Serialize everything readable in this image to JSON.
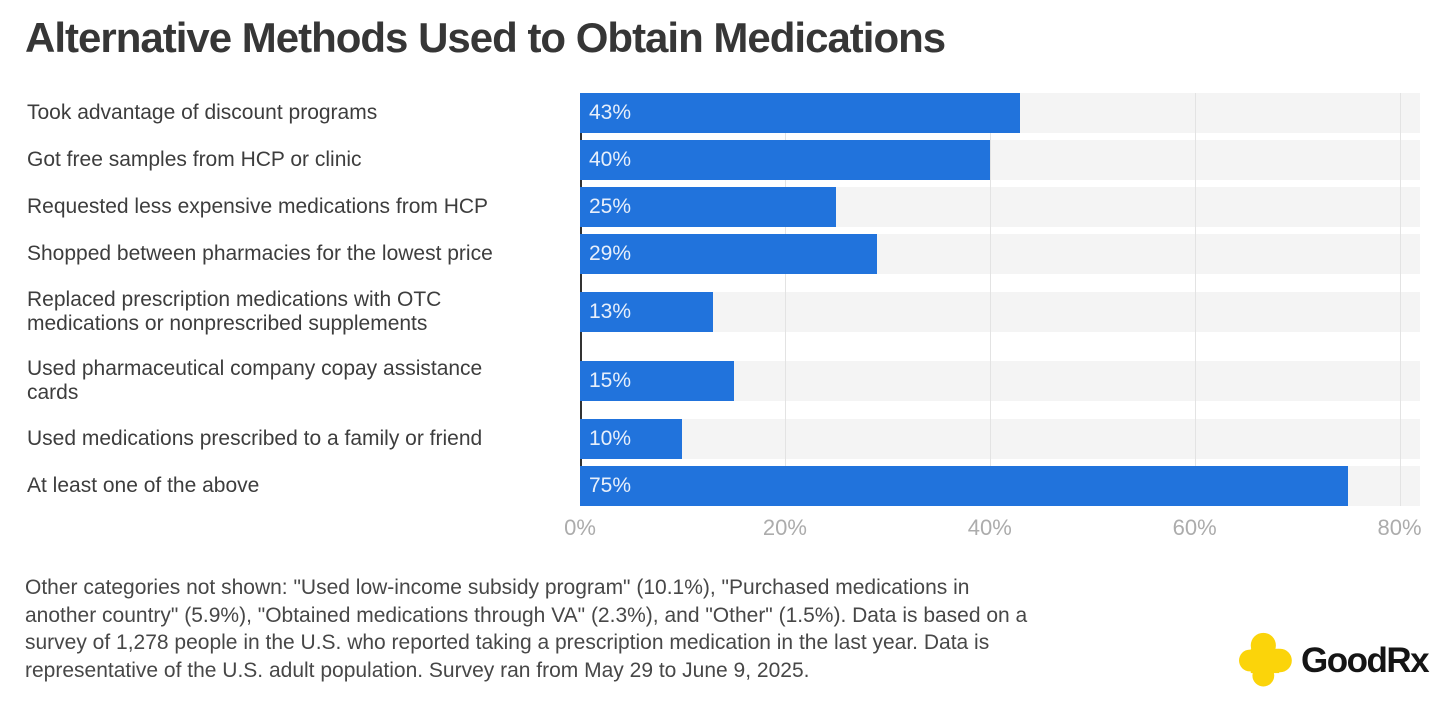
{
  "title": "Alternative Methods Used to Obtain Medications",
  "chart_data": {
    "type": "bar",
    "orientation": "horizontal",
    "title": "Alternative Methods Used to Obtain Medications",
    "categories": [
      "Took advantage of discount programs",
      "Got free samples from HCP or clinic",
      "Requested less expensive medications from HCP",
      "Shopped between pharmacies for the lowest price",
      "Replaced prescription medications with OTC medications or nonprescribed supplements",
      "Used pharmaceutical company copay assistance cards",
      "Used medications prescribed to a family or friend",
      "At least one of the above"
    ],
    "category_lines": [
      [
        "Took advantage of discount programs"
      ],
      [
        "Got free samples from HCP or clinic"
      ],
      [
        "Requested less expensive medications from HCP"
      ],
      [
        "Shopped between pharmacies for the lowest price"
      ],
      [
        "Replaced prescription medications with OTC",
        "medications or nonprescribed supplements"
      ],
      [
        "Used pharmaceutical company copay assistance",
        "cards"
      ],
      [
        "Used medications prescribed to a family or friend"
      ],
      [
        "At least one of the above"
      ]
    ],
    "values": [
      43,
      40,
      25,
      29,
      13,
      15,
      10,
      75
    ],
    "value_labels": [
      "43%",
      "40%",
      "25%",
      "29%",
      "13%",
      "15%",
      "10%",
      "75%"
    ],
    "xlabel": "",
    "ylabel": "",
    "x_ticks": [
      "0%",
      "20%",
      "40%",
      "60%",
      "80%"
    ],
    "x_tick_values": [
      0,
      20,
      40,
      60,
      80
    ],
    "xlim": [
      0,
      82
    ],
    "grid": true,
    "legend": false,
    "bar_color": "#2173DC",
    "row_background_color": "#F4F4F4",
    "gridline_color": "#E3E3E3",
    "axis_line_color": "#333333"
  },
  "footnote": {
    "lines": [
      "Other categories not shown: \"Used low-income subsidy program\" (10.1%), \"Purchased medications in",
      "another country\" (5.9%), \"Obtained medications through VA\" (2.3%), and \"Other\" (1.5%). Data is based on a",
      "survey of 1,278 people in the U.S. who reported taking a prescription medication in the last year. Data is",
      "representative of the U.S. adult population. Survey ran from May 29 to June 9, 2025."
    ]
  },
  "logo": {
    "text": "GoodRx",
    "cross_color": "#FBD40A"
  }
}
